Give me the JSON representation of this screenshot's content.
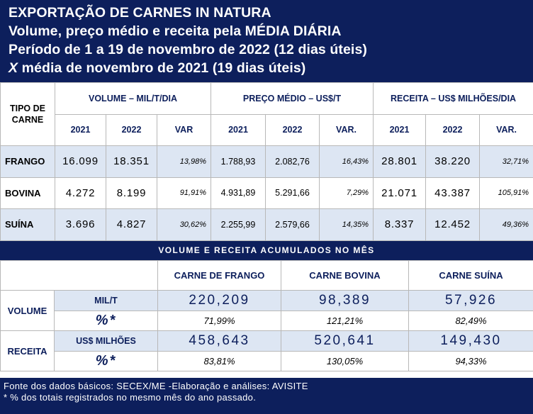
{
  "header": {
    "line1": "EXPORTAÇÃO DE CARNES IN NATURA",
    "line2": "Volume, preço médio e receita pela MÉDIA DIÁRIA",
    "line3": "Período de 1 a 19 de novembro de 2022 (12 dias úteis)",
    "line4_x": "X",
    "line4_rest": " média de novembro de 2021 (19 dias úteis)"
  },
  "table1": {
    "tipo_label": "TIPO DE CARNE",
    "groups": [
      "VOLUME – MIL/T/DIA",
      "PREÇO MÉDIO – US$/T",
      "RECEITA – US$ MILHÕES/DIA"
    ],
    "subheaders": [
      "2021",
      "2022",
      "VAR",
      "2021",
      "2022",
      "VAR.",
      "2021",
      "2022",
      "VAR."
    ],
    "rows": [
      {
        "name": "FRANGO",
        "vol_2021": "16.099",
        "vol_2022": "18.351",
        "vol_var": "13,98%",
        "pm_2021": "1.788,93",
        "pm_2022": "2.082,76",
        "pm_var": "16,43%",
        "rec_2021": "28.801",
        "rec_2022": "38.220",
        "rec_var": "32,71%"
      },
      {
        "name": "BOVINA",
        "vol_2021": "4.272",
        "vol_2022": "8.199",
        "vol_var": "91,91%",
        "pm_2021": "4.931,89",
        "pm_2022": "5.291,66",
        "pm_var": "7,29%",
        "rec_2021": "21.071",
        "rec_2022": "43.387",
        "rec_var": "105,91%"
      },
      {
        "name": "SUÍNA",
        "vol_2021": "3.696",
        "vol_2022": "4.827",
        "vol_var": "30,62%",
        "pm_2021": "2.255,99",
        "pm_2022": "2.579,66",
        "pm_var": "14,35%",
        "rec_2021": "8.337",
        "rec_2022": "12.452",
        "rec_var": "49,36%"
      }
    ]
  },
  "band_title": "VOLUME E RECEITA ACUMULADOS NO MÊS",
  "table2": {
    "headers": [
      "CARNE DE FRANGO",
      "CARNE BOVINA",
      "CARNE SUÍNA"
    ],
    "volume": {
      "label": "VOLUME",
      "unit": "MIL/T",
      "values": [
        "220,209",
        "98,389",
        "57,926"
      ],
      "pct_label": "%*",
      "pcts": [
        "71,99%",
        "121,21%",
        "82,49%"
      ]
    },
    "receita": {
      "label": "RECEITA",
      "unit": "US$ MILHÕES",
      "values": [
        "458,643",
        "520,641",
        "149,430"
      ],
      "pct_label": "%*",
      "pcts": [
        "83,81%",
        "130,05%",
        "94,33%"
      ]
    }
  },
  "footer": {
    "line1": "Fonte dos dados básicos: SECEX/ME -Elaboração e análises: AVISITE",
    "line2": "* % dos totais registrados no mesmo mês do ano passado."
  },
  "colors": {
    "navy": "#0d1f5c",
    "shade": "#dde6f3",
    "grid": "#b8b8b8"
  }
}
